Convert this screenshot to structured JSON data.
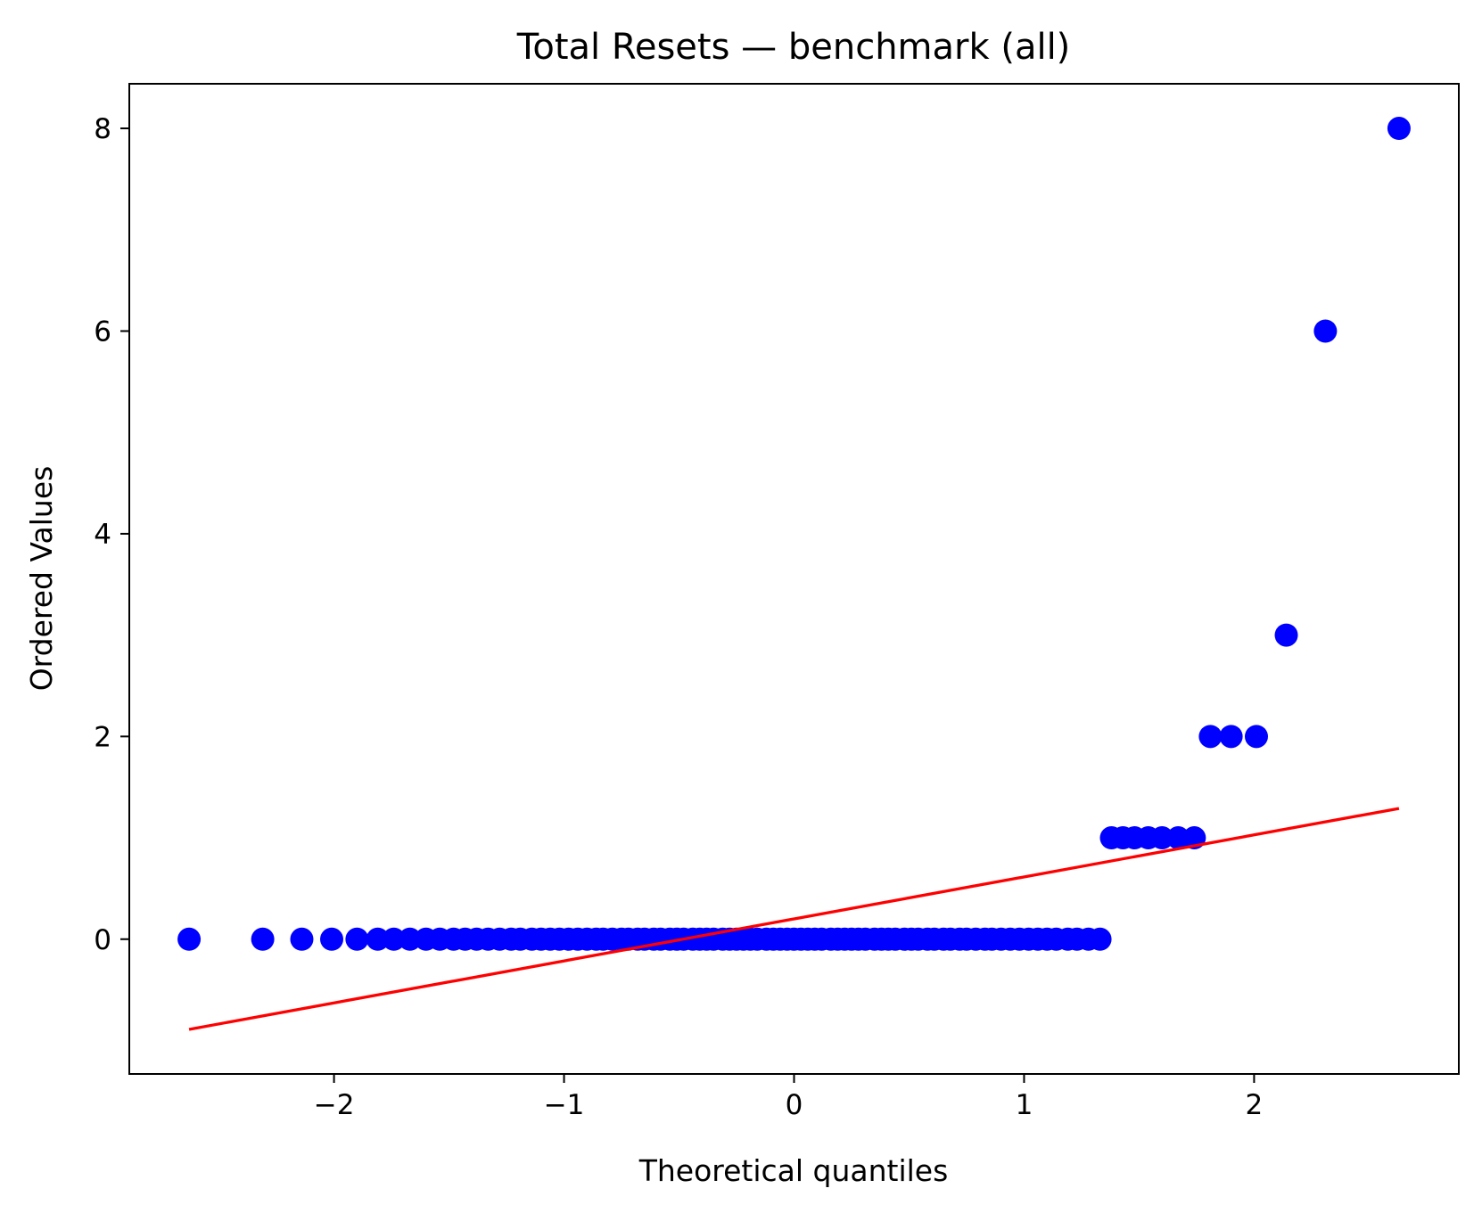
{
  "chart_data": {
    "type": "scatter",
    "title": "Total Resets — benchmark (all)",
    "xlabel": "Theoretical quantiles",
    "ylabel": "Ordered Values",
    "xlim": [
      -2.89,
      2.89
    ],
    "ylim": [
      -1.33,
      8.44
    ],
    "xticks": [
      {
        "value": -2,
        "label": "−2"
      },
      {
        "value": -1,
        "label": "−1"
      },
      {
        "value": 0,
        "label": "0"
      },
      {
        "value": 1,
        "label": "1"
      },
      {
        "value": 2,
        "label": "2"
      }
    ],
    "yticks": [
      {
        "value": 0,
        "label": "0"
      },
      {
        "value": 2,
        "label": "2"
      },
      {
        "value": 4,
        "label": "4"
      },
      {
        "value": 6,
        "label": "6"
      },
      {
        "value": 8,
        "label": "8"
      }
    ],
    "grid": false,
    "legend": "none",
    "series": [
      {
        "kind": "points",
        "color": "#0000ff",
        "x": [
          -2.63,
          -2.31,
          -2.14,
          -2.01,
          -1.9,
          -1.81,
          -1.74,
          -1.67,
          -1.6,
          -1.54,
          -1.48,
          -1.43,
          -1.38,
          -1.33,
          -1.28,
          -1.23,
          -1.19,
          -1.14,
          -1.1,
          -1.06,
          -1.02,
          -0.98,
          -0.94,
          -0.9,
          -0.86,
          -0.83,
          -0.79,
          -0.75,
          -0.72,
          -0.68,
          -0.65,
          -0.61,
          -0.58,
          -0.54,
          -0.51,
          -0.48,
          -0.44,
          -0.41,
          -0.38,
          -0.35,
          -0.31,
          -0.28,
          -0.25,
          -0.22,
          -0.19,
          -0.16,
          -0.12,
          -0.09,
          -0.06,
          -0.03,
          0.0,
          0.03,
          0.06,
          0.09,
          0.12,
          0.16,
          0.19,
          0.22,
          0.25,
          0.28,
          0.31,
          0.35,
          0.38,
          0.41,
          0.44,
          0.48,
          0.51,
          0.54,
          0.58,
          0.61,
          0.65,
          0.68,
          0.72,
          0.75,
          0.79,
          0.83,
          0.86,
          0.9,
          0.94,
          0.98,
          1.02,
          1.06,
          1.1,
          1.14,
          1.19,
          1.23,
          1.28,
          1.33,
          1.38,
          1.43,
          1.48,
          1.54,
          1.6,
          1.67,
          1.74,
          1.81,
          1.9,
          2.01,
          2.14,
          2.31,
          2.63
        ],
        "y": [
          0,
          0,
          0,
          0,
          0,
          0,
          0,
          0,
          0,
          0,
          0,
          0,
          0,
          0,
          0,
          0,
          0,
          0,
          0,
          0,
          0,
          0,
          0,
          0,
          0,
          0,
          0,
          0,
          0,
          0,
          0,
          0,
          0,
          0,
          0,
          0,
          0,
          0,
          0,
          0,
          0,
          0,
          0,
          0,
          0,
          0,
          0,
          0,
          0,
          0,
          0,
          0,
          0,
          0,
          0,
          0,
          0,
          0,
          0,
          0,
          0,
          0,
          0,
          0,
          0,
          0,
          0,
          0,
          0,
          0,
          0,
          0,
          0,
          0,
          0,
          0,
          0,
          0,
          0,
          0,
          0,
          0,
          0,
          0,
          0,
          0,
          0,
          0,
          1,
          1,
          1,
          1,
          1,
          1,
          1,
          2,
          2,
          2,
          3,
          6,
          8
        ]
      },
      {
        "kind": "line",
        "color": "#ff0000",
        "x": [
          -2.63,
          2.63
        ],
        "y": [
          -0.89,
          1.29
        ]
      }
    ]
  }
}
